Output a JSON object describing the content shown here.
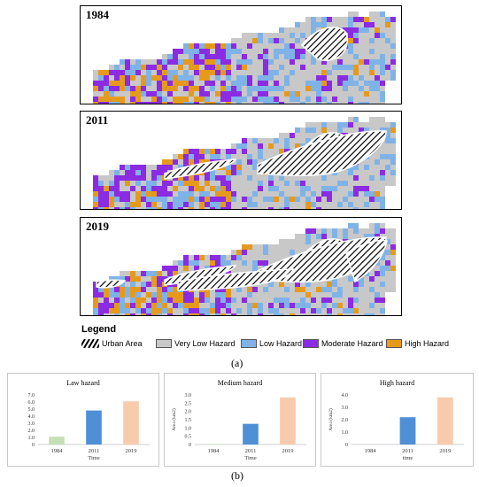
{
  "maps": [
    {
      "year": "1984",
      "urban_level": 1
    },
    {
      "year": "2011",
      "urban_level": 2
    },
    {
      "year": "2019",
      "urban_level": 3
    }
  ],
  "legend": {
    "title": "Legend",
    "items": [
      {
        "label": "Urban Area",
        "color": "#ffffff",
        "pattern": "hatch"
      },
      {
        "label": "Very Low Hazard",
        "color": "#c8c8c8"
      },
      {
        "label": "Low Hazard",
        "color": "#7fb3e8"
      },
      {
        "label": "Moderate Hazard",
        "color": "#8b2be2"
      },
      {
        "label": "High Hazard",
        "color": "#e69a1c"
      }
    ]
  },
  "labels": {
    "a": "(a)",
    "b": "(b)"
  },
  "chart_data": [
    {
      "type": "bar",
      "title": "Law hazard",
      "categories": [
        "1984",
        "2011",
        "2019"
      ],
      "values": [
        1.1,
        4.8,
        6.1
      ],
      "colors": [
        "#c5e0b4",
        "#4f8fd6",
        "#f8cbad"
      ],
      "xlabel": "Time",
      "ylabel": "",
      "ylim": [
        0,
        7.0
      ],
      "yticks": [
        "0",
        "1.0",
        "2.0",
        "3.0",
        "4.0",
        "5.0",
        "6.0",
        "7.0"
      ]
    },
    {
      "type": "bar",
      "title": "Medium  hazard",
      "categories": [
        "1984",
        "2011",
        "2019"
      ],
      "values": [
        0.02,
        1.25,
        2.85
      ],
      "colors": [
        "#c5e0b4",
        "#4f8fd6",
        "#f8cbad"
      ],
      "xlabel": "Time",
      "ylabel": "Area (km2)",
      "ylim": [
        0,
        3.0
      ],
      "yticks": [
        "0",
        "0.5",
        "1.0",
        "1.5",
        "2.0",
        "2.5",
        "3.0"
      ]
    },
    {
      "type": "bar",
      "title": "High hazard",
      "categories": [
        "1984",
        "2011",
        "2019"
      ],
      "values": [
        0.0,
        2.2,
        3.8
      ],
      "colors": [
        "#c5e0b4",
        "#4f8fd6",
        "#f8cbad"
      ],
      "xlabel": "time",
      "ylabel": "Area (km2)",
      "ylim": [
        0,
        4.0
      ],
      "yticks": [
        "0",
        "1.0",
        "2.0",
        "3.0",
        "4.0"
      ]
    }
  ]
}
